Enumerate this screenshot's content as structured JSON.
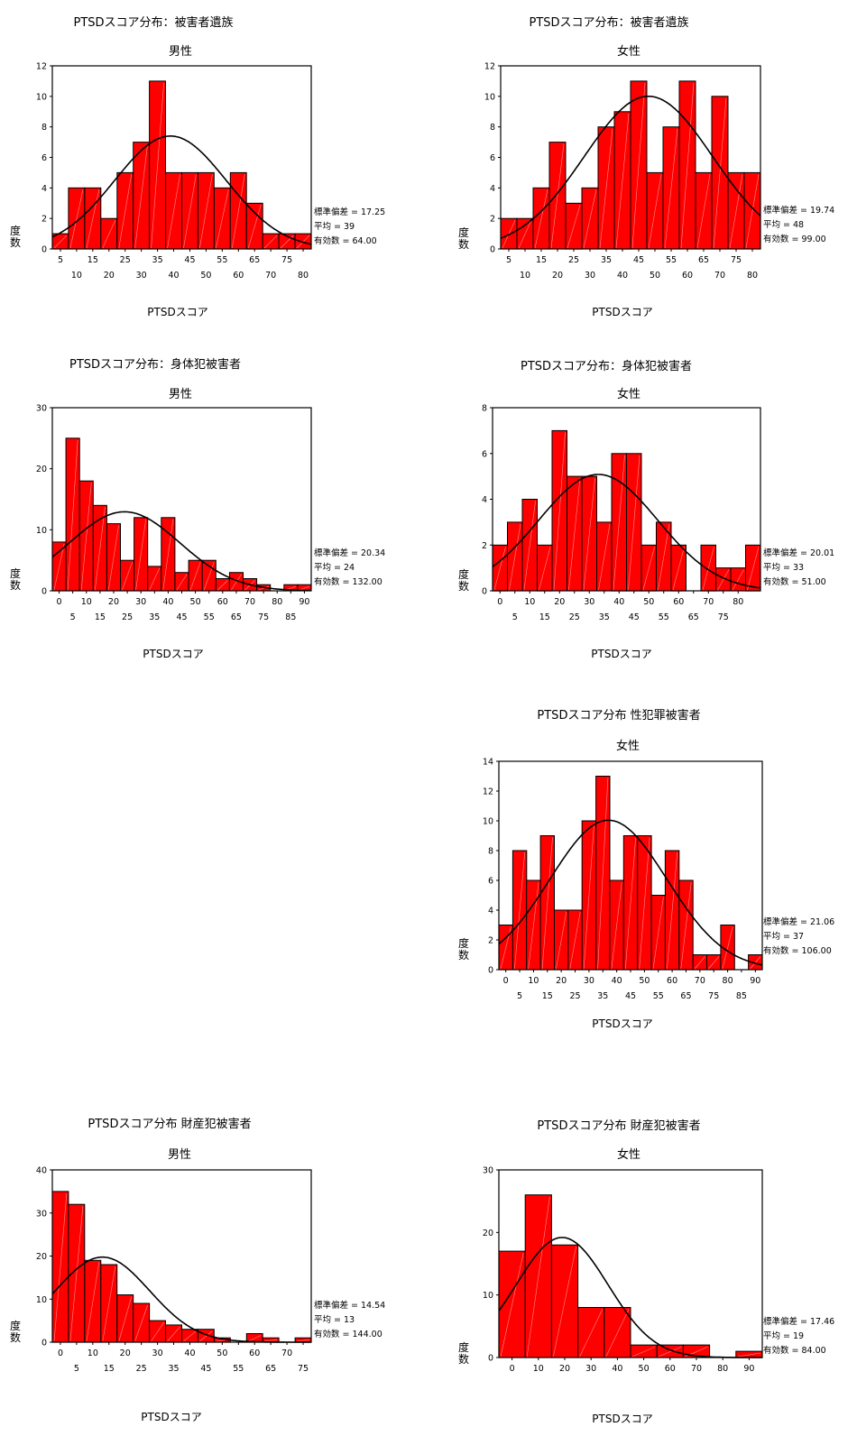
{
  "style": {
    "bar_fill": "#ff0000",
    "bar_stroke": "#000000",
    "curve_color": "#000000",
    "frame_color": "#000000"
  },
  "chart_data": [
    {
      "type": "bar",
      "title": "PTSDスコア分布：被害者遺族",
      "subtitle": "男性",
      "xlabel": "PTSDスコア",
      "ylabel": "度数",
      "x_ticks_top": [
        "5",
        "15",
        "25",
        "35",
        "45",
        "55",
        "65",
        "75"
      ],
      "x_ticks_bottom": [
        "10",
        "20",
        "30",
        "40",
        "50",
        "60",
        "70",
        "80"
      ],
      "ylim": [
        0,
        12
      ],
      "y_ticks": [
        "0",
        "2",
        "4",
        "6",
        "8",
        "10",
        "12"
      ],
      "bin_start": 2.5,
      "bin_width": 5,
      "values": [
        1,
        4,
        4,
        2,
        5,
        7,
        11,
        5,
        5,
        5,
        4,
        5,
        3,
        1,
        1,
        1
      ],
      "stats": {
        "std_label": "標準偏差 = 17.25",
        "mean_label": "平均 = 39",
        "n_label": "有効数 = 64.00"
      },
      "normal": {
        "mean": 39,
        "sd": 17.25,
        "n": 64
      }
    },
    {
      "type": "bar",
      "title": "PTSDスコア分布：被害者遺族",
      "subtitle": "女性",
      "xlabel": "PTSDスコア",
      "ylabel": "度数",
      "x_ticks_top": [
        "5",
        "15",
        "25",
        "35",
        "45",
        "55",
        "65",
        "75"
      ],
      "x_ticks_bottom": [
        "10",
        "20",
        "30",
        "40",
        "50",
        "60",
        "70",
        "80"
      ],
      "ylim": [
        0,
        12
      ],
      "y_ticks": [
        "0",
        "2",
        "4",
        "6",
        "8",
        "10",
        "12"
      ],
      "bin_start": 2.5,
      "bin_width": 5,
      "values": [
        2,
        2,
        4,
        7,
        3,
        4,
        8,
        9,
        11,
        5,
        8,
        11,
        5,
        10,
        5,
        5
      ],
      "stats": {
        "std_label": "標準偏差 = 19.74",
        "mean_label": "平均 = 48",
        "n_label": "有効数 = 99.00"
      },
      "normal": {
        "mean": 48,
        "sd": 19.74,
        "n": 99
      }
    },
    {
      "type": "bar",
      "title": "PTSDスコア分布：身体犯被害者",
      "subtitle": "男性",
      "xlabel": "PTSDスコア",
      "ylabel": "度数",
      "x_ticks_top": [
        "0",
        "10",
        "20",
        "30",
        "40",
        "50",
        "60",
        "70",
        "80",
        "90"
      ],
      "x_ticks_bottom": [
        "5",
        "15",
        "25",
        "35",
        "45",
        "55",
        "65",
        "75",
        "85"
      ],
      "ylim": [
        0,
        30
      ],
      "y_ticks": [
        "0",
        "10",
        "20",
        "30"
      ],
      "bin_start": -2.5,
      "bin_width": 5,
      "values": [
        8,
        25,
        18,
        14,
        11,
        5,
        12,
        4,
        12,
        3,
        5,
        5,
        2,
        3,
        2,
        1,
        0,
        1,
        1
      ],
      "stats": {
        "std_label": "標準偏差 = 20.34",
        "mean_label": "平均 = 24",
        "n_label": "有効数 = 132.00"
      },
      "normal": {
        "mean": 24,
        "sd": 20.34,
        "n": 132
      }
    },
    {
      "type": "bar",
      "title": "PTSDスコア分布：身体犯被害者",
      "subtitle": "女性",
      "xlabel": "PTSDスコア",
      "ylabel": "度数",
      "x_ticks_top": [
        "0",
        "10",
        "20",
        "30",
        "40",
        "50",
        "60",
        "70",
        "80"
      ],
      "x_ticks_bottom": [
        "5",
        "15",
        "25",
        "35",
        "45",
        "55",
        "65",
        "75"
      ],
      "ylim": [
        0,
        8
      ],
      "y_ticks": [
        "0",
        "2",
        "4",
        "6",
        "8"
      ],
      "bin_start": -2.5,
      "bin_width": 5,
      "values": [
        2,
        3,
        4,
        2,
        7,
        5,
        5,
        3,
        6,
        6,
        2,
        3,
        2,
        0,
        2,
        1,
        1,
        2
      ],
      "stats": {
        "std_label": "標準偏差 = 20.01",
        "mean_label": "平均 = 33",
        "n_label": "有効数 = 51.00"
      },
      "normal": {
        "mean": 33,
        "sd": 20.01,
        "n": 51
      }
    },
    {
      "type": "bar",
      "title": "PTSDスコア分布 性犯罪被害者",
      "subtitle": "女性",
      "xlabel": "PTSDスコア",
      "ylabel": "度数",
      "x_ticks_top": [
        "0",
        "10",
        "20",
        "30",
        "40",
        "50",
        "60",
        "70",
        "80",
        "90"
      ],
      "x_ticks_bottom": [
        "5",
        "15",
        "25",
        "35",
        "45",
        "55",
        "65",
        "75",
        "85"
      ],
      "ylim": [
        0,
        14
      ],
      "y_ticks": [
        "0",
        "2",
        "4",
        "6",
        "8",
        "10",
        "12",
        "14"
      ],
      "bin_start": -2.5,
      "bin_width": 5,
      "values": [
        3,
        8,
        6,
        9,
        4,
        4,
        10,
        13,
        6,
        9,
        9,
        5,
        8,
        6,
        1,
        1,
        3,
        0,
        1
      ],
      "stats": {
        "std_label": "標準偏差 = 21.06",
        "mean_label": "平均 = 37",
        "n_label": "有効数 = 106.00"
      },
      "normal": {
        "mean": 37,
        "sd": 21.06,
        "n": 106
      }
    },
    {
      "type": "bar",
      "title": "PTSDスコア分布 財産犯被害者",
      "subtitle": "男性",
      "xlabel": "PTSDスコア",
      "ylabel": "度数",
      "x_ticks_top": [
        "0",
        "10",
        "20",
        "30",
        "40",
        "50",
        "60",
        "70"
      ],
      "x_ticks_bottom": [
        "5",
        "15",
        "25",
        "35",
        "45",
        "55",
        "65",
        "75"
      ],
      "ylim": [
        0,
        40
      ],
      "y_ticks": [
        "0",
        "10",
        "20",
        "30",
        "40"
      ],
      "bin_start": -2.5,
      "bin_width": 5,
      "values": [
        35,
        32,
        19,
        18,
        11,
        9,
        5,
        4,
        3,
        3,
        1,
        0,
        2,
        1,
        0,
        1
      ],
      "stats": {
        "std_label": "標準偏差 = 14.54",
        "mean_label": "平均 = 13",
        "n_label": "有効数 = 144.00"
      },
      "normal": {
        "mean": 13,
        "sd": 14.54,
        "n": 144
      }
    },
    {
      "type": "bar",
      "title": "PTSDスコア分布 財産犯被害者",
      "subtitle": "女性",
      "xlabel": "PTSDスコア",
      "ylabel": "度数",
      "x_ticks_top": [
        "0",
        "10",
        "20",
        "30",
        "40",
        "50",
        "60",
        "70",
        "80",
        "90"
      ],
      "x_ticks_bottom": [],
      "ylim": [
        0,
        30
      ],
      "y_ticks": [
        "0",
        "10",
        "20",
        "30"
      ],
      "bin_start": -5,
      "bin_width": 10,
      "values": [
        17,
        26,
        18,
        8,
        8,
        2,
        2,
        2,
        0,
        1
      ],
      "stats": {
        "std_label": "標準偏差 = 17.46",
        "mean_label": "平均 = 19",
        "n_label": "有効数 = 84.00"
      },
      "normal": {
        "mean": 19,
        "sd": 17.46,
        "n": 84
      }
    }
  ]
}
